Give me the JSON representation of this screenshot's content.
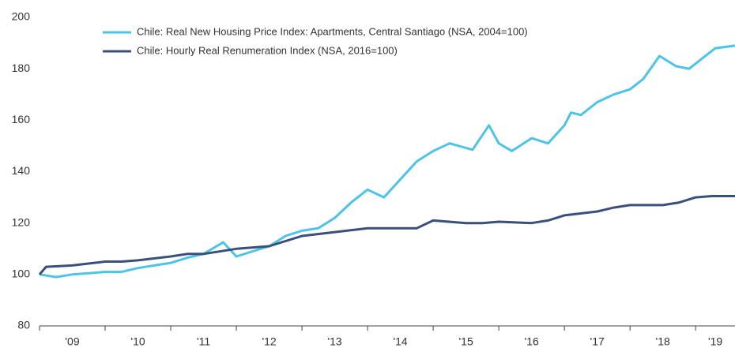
{
  "chart_data": {
    "type": "line",
    "xlim": [
      2009,
      2019.6
    ],
    "xticks": [
      {
        "value": 2009.5,
        "label": "'09"
      },
      {
        "value": 2010.5,
        "label": "'10"
      },
      {
        "value": 2011.5,
        "label": "'11"
      },
      {
        "value": 2012.5,
        "label": "'12"
      },
      {
        "value": 2013.5,
        "label": "'13"
      },
      {
        "value": 2014.5,
        "label": "'14"
      },
      {
        "value": 2015.5,
        "label": "'15"
      },
      {
        "value": 2016.5,
        "label": "'16"
      },
      {
        "value": 2017.5,
        "label": "'17"
      },
      {
        "value": 2018.5,
        "label": "'18"
      },
      {
        "value": 2019.3,
        "label": "'19"
      }
    ],
    "ylim": [
      80,
      200
    ],
    "yticks": [
      80,
      100,
      120,
      140,
      160,
      180,
      200
    ],
    "series": [
      {
        "name": "Chile: Real New Housing Price Index: Apartments, Central Santiago (NSA, 2004=100)",
        "color": "#4dc3e8",
        "x": [
          2009.0,
          2009.25,
          2009.5,
          2009.75,
          2010.0,
          2010.25,
          2010.5,
          2010.75,
          2011.0,
          2011.25,
          2011.5,
          2011.8,
          2012.0,
          2012.25,
          2012.5,
          2012.75,
          2013.0,
          2013.25,
          2013.5,
          2013.75,
          2014.0,
          2014.25,
          2014.5,
          2014.75,
          2015.0,
          2015.25,
          2015.6,
          2015.85,
          2016.0,
          2016.2,
          2016.5,
          2016.75,
          2017.0,
          2017.1,
          2017.25,
          2017.5,
          2017.75,
          2018.0,
          2018.2,
          2018.45,
          2018.7,
          2018.9,
          2019.1,
          2019.3,
          2019.6
        ],
        "values": [
          100,
          99,
          100,
          100.5,
          101,
          101,
          102.5,
          103.5,
          104.5,
          106.5,
          108,
          112.5,
          107,
          109,
          111,
          115,
          117,
          118,
          122,
          128,
          133,
          130,
          137,
          144,
          148,
          151,
          148.5,
          158,
          151,
          148,
          153,
          151,
          158,
          163,
          162,
          167,
          170,
          172,
          176,
          185,
          181,
          180,
          184,
          188,
          189
        ]
      },
      {
        "name": "Chile: Hourly Real Renumeration Index (NSA, 2016=100)",
        "color": "#3a4f7a",
        "x": [
          2009.0,
          2009.1,
          2009.5,
          2010.0,
          2010.25,
          2010.5,
          2011.0,
          2011.25,
          2011.5,
          2012.0,
          2012.5,
          2012.75,
          2013.0,
          2013.5,
          2014.0,
          2014.5,
          2014.75,
          2015.0,
          2015.5,
          2015.75,
          2016.0,
          2016.5,
          2016.75,
          2017.0,
          2017.5,
          2017.75,
          2018.0,
          2018.5,
          2018.75,
          2019.0,
          2019.25,
          2019.6
        ],
        "values": [
          100,
          103,
          103.5,
          105,
          105,
          105.5,
          107,
          108,
          108,
          110,
          111,
          113,
          115,
          116.5,
          118,
          118,
          118,
          121,
          120,
          120,
          120.5,
          120,
          121,
          123,
          124.5,
          126,
          127,
          127,
          128,
          130,
          130.5,
          130.5
        ]
      }
    ]
  }
}
